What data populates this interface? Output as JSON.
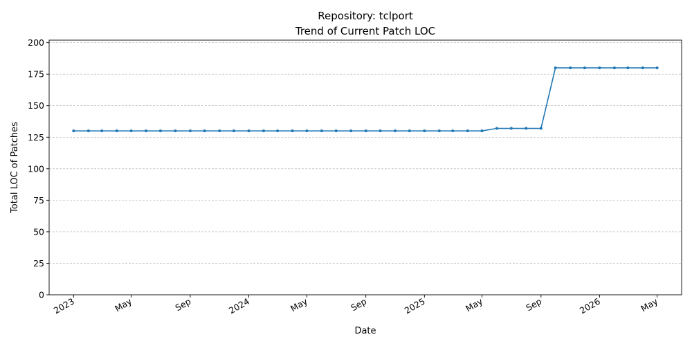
{
  "chart_data": {
    "type": "line",
    "title": "Repository: tclport",
    "subtitle": "Trend of Current Patch LOC",
    "xlabel": "Date",
    "ylabel": "Total LOC of Patches",
    "ylim": [
      0,
      202
    ],
    "yticks": [
      0,
      25,
      50,
      75,
      100,
      125,
      150,
      175,
      200
    ],
    "xlim": [
      "2022-11-11",
      "2026-06-21"
    ],
    "xticks": [
      {
        "date": "2023-01-01",
        "label": "2023"
      },
      {
        "date": "2023-05-01",
        "label": "May"
      },
      {
        "date": "2023-09-01",
        "label": "Sep"
      },
      {
        "date": "2024-01-01",
        "label": "2024"
      },
      {
        "date": "2024-05-01",
        "label": "May"
      },
      {
        "date": "2024-09-01",
        "label": "Sep"
      },
      {
        "date": "2025-01-01",
        "label": "2025"
      },
      {
        "date": "2025-05-01",
        "label": "May"
      },
      {
        "date": "2025-09-01",
        "label": "Sep"
      },
      {
        "date": "2026-01-01",
        "label": "2026"
      },
      {
        "date": "2026-05-01",
        "label": "May"
      }
    ],
    "grid": "y-dashed",
    "line_color": "#1f77b4",
    "series": [
      {
        "x": [
          "2023-01-01",
          "2023-02-01",
          "2023-03-01",
          "2023-04-01",
          "2023-05-01",
          "2023-06-01",
          "2023-07-01",
          "2023-08-01",
          "2023-09-01",
          "2023-10-01",
          "2023-11-01",
          "2023-12-01",
          "2024-01-01",
          "2024-02-01",
          "2024-03-01",
          "2024-04-01",
          "2024-05-01",
          "2024-06-01",
          "2024-07-01",
          "2024-08-01",
          "2024-09-01",
          "2024-10-01",
          "2024-11-01",
          "2024-12-01",
          "2025-01-01",
          "2025-02-01",
          "2025-03-01",
          "2025-04-01",
          "2025-05-01",
          "2025-06-01",
          "2025-07-01",
          "2025-08-01",
          "2025-09-01",
          "2025-10-01",
          "2025-11-01",
          "2025-12-01",
          "2026-01-01",
          "2026-02-01",
          "2026-03-01",
          "2026-04-01",
          "2026-05-01"
        ],
        "values": [
          130,
          130,
          130,
          130,
          130,
          130,
          130,
          130,
          130,
          130,
          130,
          130,
          130,
          130,
          130,
          130,
          130,
          130,
          130,
          130,
          130,
          130,
          130,
          130,
          130,
          130,
          130,
          130,
          130,
          132,
          132,
          132,
          132,
          180,
          180,
          180,
          180,
          180,
          180,
          180,
          180
        ]
      }
    ]
  }
}
